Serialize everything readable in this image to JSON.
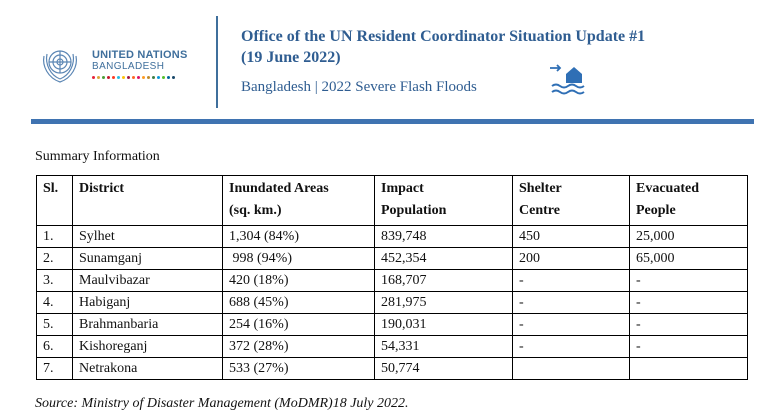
{
  "header": {
    "org_name": "UNITED NATIONS",
    "org_country": "BANGLADESH",
    "title_line1": "Office of the UN Resident Coordinator Situation Update #1",
    "title_line2": "(19 June 2022)",
    "subtitle": "Bangladesh | 2022 Severe Flash Floods",
    "logo_icon": "un-emblem-icon",
    "flood_icon": "house-flood-icon",
    "colors": {
      "brand": "#3f6f9c",
      "title": "#2f5d91",
      "rule": "#3f73b1"
    },
    "sdg_dot_colors": [
      "#e5243b",
      "#dda63a",
      "#4c9f38",
      "#c5192d",
      "#ff3a21",
      "#26bde2",
      "#fcc30b",
      "#a21942",
      "#fd6925",
      "#dd1367",
      "#fd9d24",
      "#bf8b2e",
      "#3f7e44",
      "#0a97d9",
      "#56c02b",
      "#00689d",
      "#19486a"
    ]
  },
  "summary": {
    "label": "Summary Information",
    "columns": [
      {
        "line1": "Sl.",
        "line2": ""
      },
      {
        "line1": "District",
        "line2": ""
      },
      {
        "line1": "Inundated Areas",
        "line2": "(sq. km.)"
      },
      {
        "line1": "Impact",
        "line2": "Population"
      },
      {
        "line1": "Shelter",
        "line2": "Centre"
      },
      {
        "line1": "Evacuated",
        "line2": "People"
      }
    ],
    "rows": [
      [
        "1.",
        "Sylhet",
        "1,304 (84%)",
        "839,748",
        "450",
        "25,000"
      ],
      [
        "2.",
        "Sunamganj",
        " 998 (94%)",
        "452,354",
        "200",
        "65,000"
      ],
      [
        "3.",
        "Maulvibazar",
        "420 (18%)",
        "168,707",
        "-",
        "-"
      ],
      [
        "4.",
        "Habiganj",
        "688 (45%)",
        "281,975",
        "-",
        "-"
      ],
      [
        "5.",
        "Brahmanbaria",
        "254 (16%)",
        "190,031",
        "-",
        "-"
      ],
      [
        "6.",
        "Kishoreganj",
        "372 (28%)",
        "54,331",
        "-",
        "-"
      ],
      [
        "7.",
        "Netrakona",
        "533 (27%)",
        "50,774",
        "",
        ""
      ]
    ],
    "source": "Source: Ministry of Disaster Management (MoDMR)18 July 2022."
  }
}
